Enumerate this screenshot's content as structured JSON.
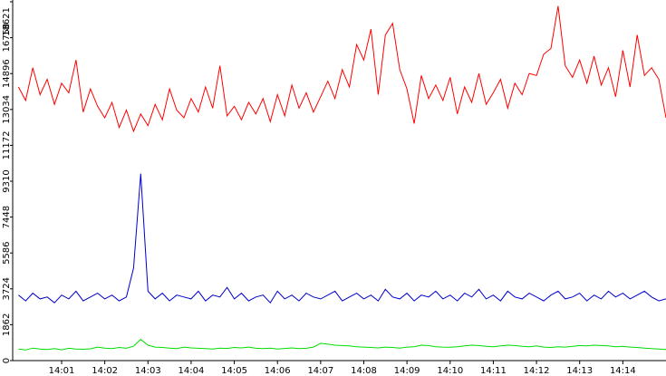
{
  "chart_data": {
    "type": "line",
    "x": [
      0,
      10,
      20,
      30,
      40,
      50,
      60,
      70,
      80,
      90,
      100,
      110,
      120,
      130,
      140,
      150,
      160,
      170,
      180,
      190,
      200,
      210,
      220,
      230,
      240,
      250,
      260,
      270,
      280,
      290,
      300,
      310,
      320,
      330,
      340,
      350,
      360,
      370,
      380,
      390,
      400,
      410,
      420,
      430,
      440,
      450,
      460,
      470,
      480,
      490,
      500,
      510,
      520,
      530,
      540,
      550,
      560,
      570,
      580,
      590,
      600,
      610,
      620,
      630,
      640,
      650,
      660,
      670,
      680,
      690,
      700,
      710,
      720,
      730,
      740,
      750,
      760,
      770,
      780,
      790,
      800,
      810,
      820,
      830,
      840,
      850,
      860,
      870,
      880,
      890,
      900
    ],
    "series": [
      {
        "color": "#ff0000",
        "values": [
          14200,
          13500,
          15200,
          13800,
          14600,
          13300,
          14400,
          13900,
          15600,
          12900,
          14100,
          13200,
          12600,
          13400,
          12100,
          13000,
          11900,
          12800,
          12200,
          13300,
          12500,
          14100,
          13000,
          12600,
          13600,
          12900,
          14200,
          13100,
          15300,
          12700,
          13200,
          12500,
          13400,
          12800,
          13600,
          12400,
          13800,
          12700,
          14300,
          13100,
          13900,
          12900,
          13700,
          14500,
          13600,
          15100,
          14200,
          16400,
          15600,
          17200,
          13800,
          16900,
          17500,
          15100,
          14100,
          12300,
          14800,
          13600,
          14300,
          13500,
          14700,
          12800,
          14200,
          13400,
          14900,
          13300,
          13900,
          14600,
          13100,
          14400,
          13800,
          14900,
          14800,
          15900,
          16200,
          18400,
          15300,
          14700,
          15600,
          14400,
          15800,
          14300,
          15200,
          13700,
          16100,
          14200,
          16900,
          14800,
          15200,
          14600,
          12600
        ]
      },
      {
        "color": "#0000cc",
        "values": [
          3400,
          3100,
          3500,
          3200,
          3300,
          3000,
          3400,
          3200,
          3600,
          3100,
          3300,
          3500,
          3200,
          3400,
          3100,
          3300,
          4800,
          9700,
          3600,
          3200,
          3500,
          3100,
          3400,
          3300,
          3200,
          3600,
          3100,
          3400,
          3300,
          3800,
          3200,
          3500,
          3100,
          3300,
          3400,
          3000,
          3600,
          3200,
          3400,
          3100,
          3500,
          3300,
          3200,
          3400,
          3600,
          3100,
          3300,
          3500,
          3200,
          3400,
          3100,
          3700,
          3300,
          3200,
          3500,
          3100,
          3400,
          3300,
          3600,
          3200,
          3400,
          3100,
          3500,
          3300,
          3700,
          3200,
          3400,
          3100,
          3600,
          3300,
          3200,
          3500,
          3300,
          3100,
          3400,
          3600,
          3200,
          3300,
          3500,
          3100,
          3400,
          3200,
          3600,
          3300,
          3500,
          3200,
          3400,
          3600,
          3300,
          3100,
          3200
        ]
      },
      {
        "color": "#00dd00",
        "values": [
          600,
          550,
          650,
          600,
          580,
          620,
          560,
          640,
          600,
          590,
          610,
          700,
          650,
          620,
          680,
          640,
          750,
          1100,
          800,
          700,
          680,
          650,
          620,
          700,
          660,
          640,
          620,
          600,
          650,
          630,
          680,
          660,
          700,
          640,
          620,
          650,
          600,
          630,
          660,
          620,
          640,
          700,
          900,
          850,
          800,
          780,
          760,
          720,
          700,
          680,
          660,
          700,
          680,
          650,
          700,
          720,
          800,
          780,
          720,
          700,
          690,
          720,
          760,
          800,
          780,
          740,
          720,
          760,
          800,
          780,
          740,
          720,
          760,
          700,
          680,
          720,
          700,
          740,
          780,
          760,
          800,
          780,
          760,
          720,
          740,
          700,
          680,
          650,
          620,
          600,
          580
        ]
      }
    ],
    "xlim": [
      -8,
      900
    ],
    "xticks": [
      {
        "value": 60,
        "label": "14:01"
      },
      {
        "value": 120,
        "label": "14:02"
      },
      {
        "value": 180,
        "label": "14:03"
      },
      {
        "value": 240,
        "label": "14:04"
      },
      {
        "value": 300,
        "label": "14:05"
      },
      {
        "value": 360,
        "label": "14:06"
      },
      {
        "value": 420,
        "label": "14:07"
      },
      {
        "value": 480,
        "label": "14:08"
      },
      {
        "value": 540,
        "label": "14:09"
      },
      {
        "value": 600,
        "label": "14:10"
      },
      {
        "value": 660,
        "label": "14:11"
      },
      {
        "value": 720,
        "label": "14:12"
      },
      {
        "value": 780,
        "label": "14:13"
      },
      {
        "value": 840,
        "label": "14:14"
      }
    ],
    "ylim": [
      0,
      18621
    ],
    "yticks": [
      0,
      1862,
      3724,
      5586,
      7448,
      9310,
      11172,
      13034,
      14896,
      16758,
      18621
    ]
  }
}
